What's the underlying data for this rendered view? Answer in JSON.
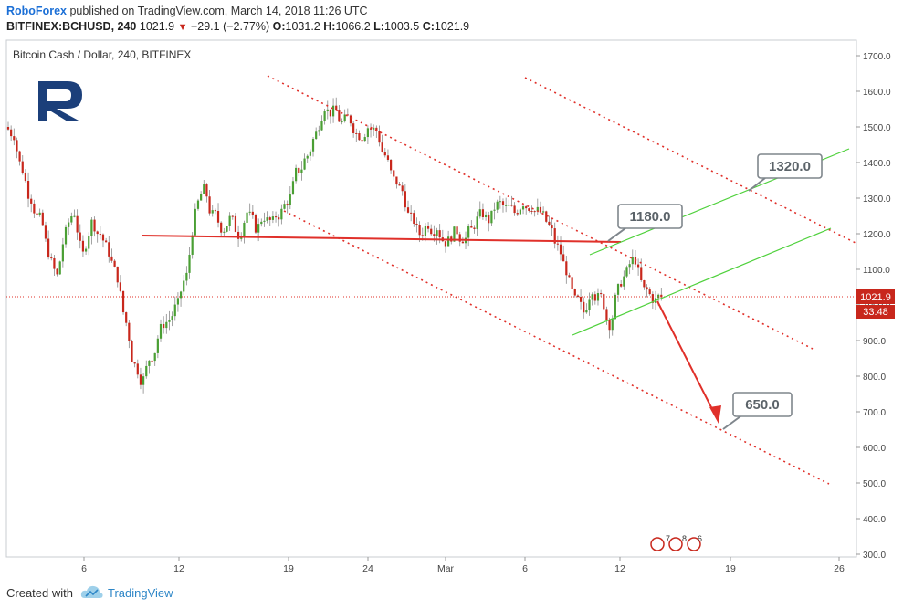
{
  "header": {
    "publisher": "RoboForex",
    "published_text": " published on TradingView.com, March 14, 2018 11:26 UTC",
    "symbol": "BITFINEX:BCHUSD, 240",
    "last": "1021.9",
    "change": "−29.1 (−2.77%)",
    "open_label": "O:",
    "open": "1031.2",
    "high_label": "H:",
    "high": "1066.2",
    "low_label": "L:",
    "low": "1003.5",
    "close_label": "C:",
    "close": "1021.9"
  },
  "chart_title": "Bitcoin Cash / Dollar, 240, BITFINEX",
  "price_tag": {
    "value": "1021.9",
    "countdown": "33:48"
  },
  "annotations": [
    "1320.0",
    "1180.0",
    "650.0"
  ],
  "events_marker": {
    "a": "7",
    "b": "8",
    "c": "6"
  },
  "footer": {
    "created_with": "Created with",
    "brand": "TradingView"
  },
  "colors": {
    "up": "#4a9f34",
    "down": "#c8271c",
    "channel_red": "#e0302a",
    "channel_green": "#4fd13c",
    "brand_blue": "#1b3f7a",
    "label_gray": "#7f868c"
  },
  "chart_data": {
    "type": "candlestick",
    "title": "Bitcoin Cash / Dollar, 240, BITFINEX",
    "ylim": [
      300,
      1700
    ],
    "y_ticks": [
      "1700.0",
      "1600.0",
      "1500.0",
      "1400.0",
      "1300.0",
      "1200.0",
      "1100.0",
      "1000.0",
      "900.0",
      "800.0",
      "700.0",
      "600.0",
      "500.0",
      "400.0",
      "300.0"
    ],
    "x_ticks": [
      "6",
      "12",
      "19",
      "24",
      "Mar",
      "6",
      "12",
      "19",
      "26"
    ],
    "close_series": [
      1480,
      1380,
      1300,
      1240,
      1150,
      1080,
      1200,
      1260,
      1140,
      1230,
      1200,
      1150,
      1080,
      950,
      830,
      790,
      860,
      930,
      960,
      1000,
      1080,
      1250,
      1320,
      1250,
      1220,
      1240,
      1200,
      1260,
      1220,
      1250,
      1230,
      1260,
      1300,
      1380,
      1420,
      1480,
      1560,
      1540,
      1510,
      1520,
      1480,
      1500,
      1490,
      1420,
      1350,
      1320,
      1240,
      1200,
      1230,
      1220,
      1180,
      1200,
      1190,
      1210,
      1250,
      1240,
      1280,
      1270,
      1260,
      1290,
      1280,
      1260,
      1220,
      1160,
      1100,
      1010,
      980,
      1050,
      1020,
      950,
      1040,
      1090,
      1130,
      1040,
      1020,
      1021.9
    ],
    "levels": [
      {
        "label": "1320.0",
        "value": 1320
      },
      {
        "label": "1180.0",
        "value": 1180
      },
      {
        "label": "650.0",
        "value": 650
      }
    ]
  }
}
